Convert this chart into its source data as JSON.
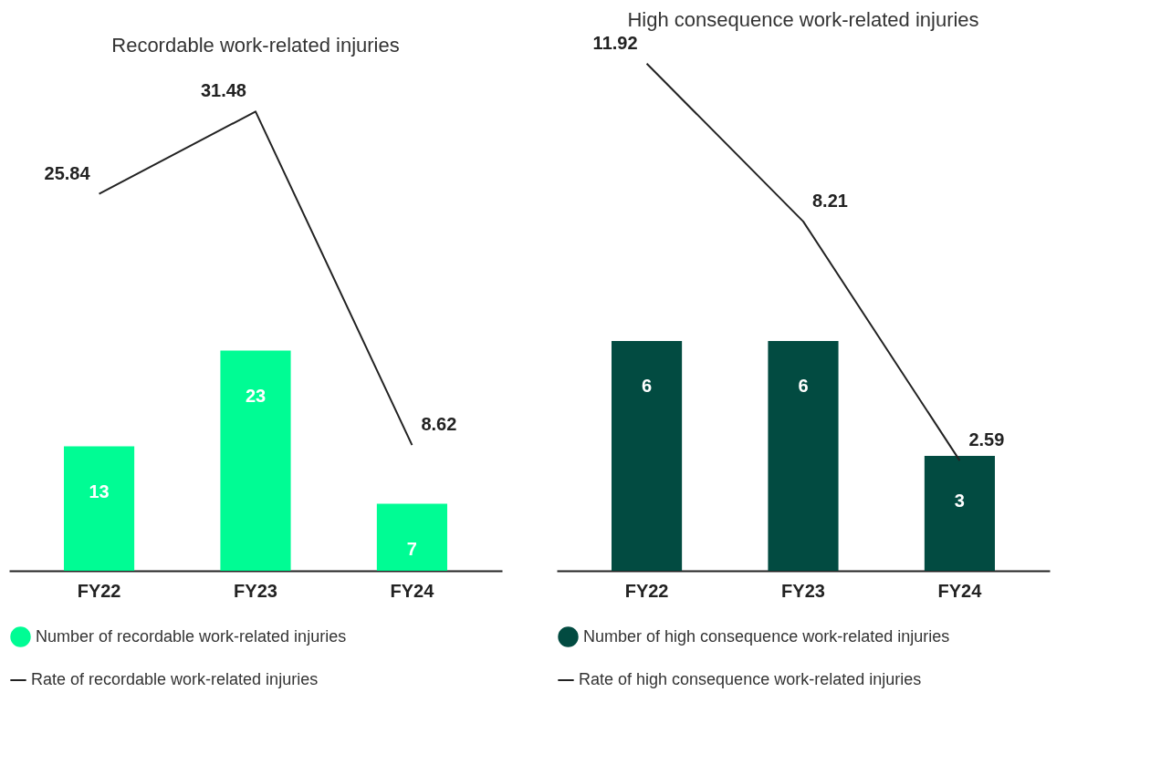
{
  "chart_data": [
    {
      "type": "bar",
      "title": "Recordable work-related injuries",
      "categories": [
        "FY22",
        "FY23",
        "FY24"
      ],
      "series": [
        {
          "name": "Number of recordable work-related injuries",
          "color": "#00fc94",
          "values": [
            13,
            23,
            7
          ]
        },
        {
          "name": "Rate of recordable work-related injuries",
          "type": "line",
          "axis": "y2",
          "color": "#222222",
          "values": [
            25.84,
            31.48,
            8.62
          ]
        }
      ],
      "data_labels": true,
      "grid": false,
      "legend": "bottom",
      "tick_labels": "x",
      "line_style": "solid"
    },
    {
      "type": "bar",
      "title": "High consequence work-related injuries",
      "categories": [
        "FY22",
        "FY23",
        "FY24"
      ],
      "series": [
        {
          "name": "Number of high consequence work-related injuries",
          "color": "#024b41",
          "values": [
            6,
            6,
            3
          ]
        },
        {
          "name": "Rate of high consequence work-related injuries",
          "type": "line",
          "axis": "y2",
          "color": "#222222",
          "values": [
            11.92,
            8.21,
            2.59
          ]
        }
      ],
      "data_labels": true,
      "grid": false,
      "legend": "bottom",
      "tick_labels": "x",
      "line_style": "solid"
    }
  ]
}
